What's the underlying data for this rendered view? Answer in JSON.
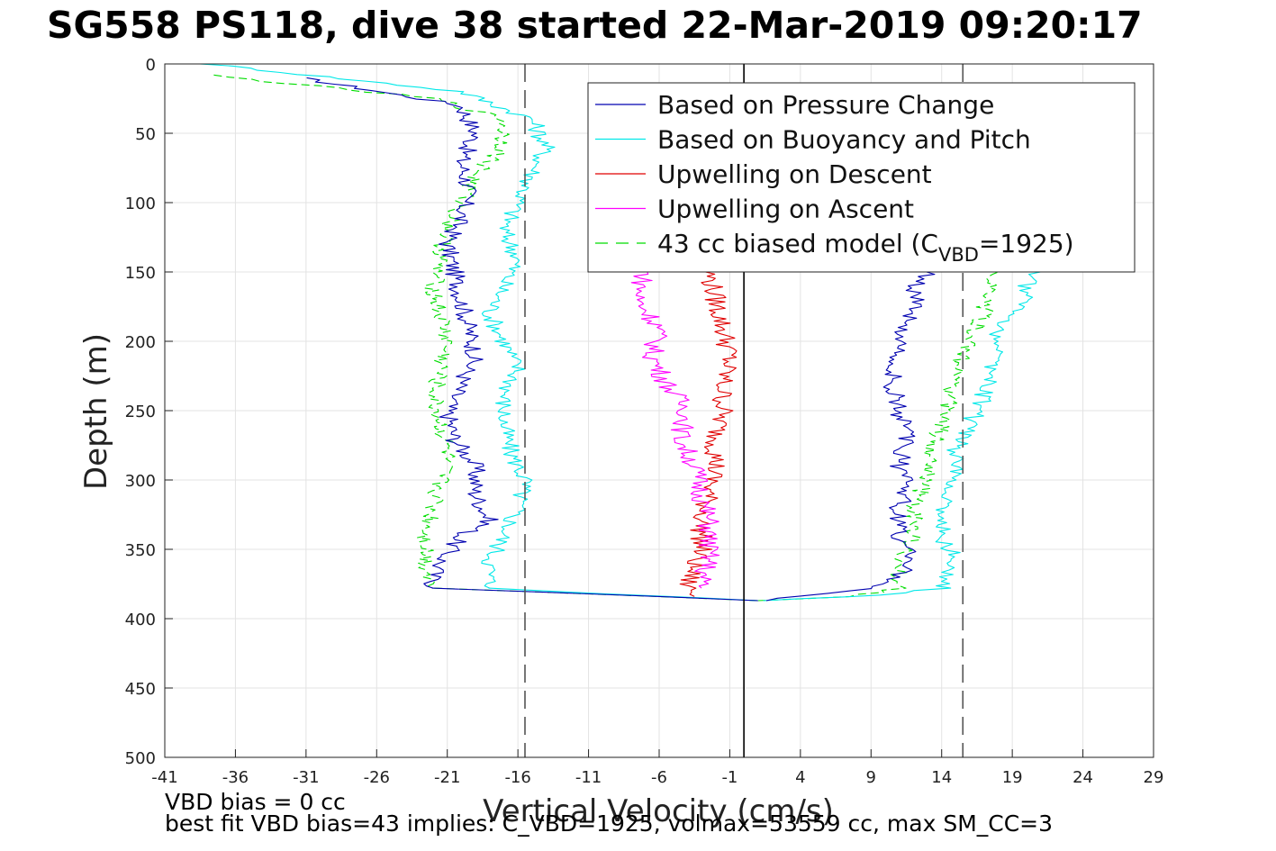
{
  "chart_data": {
    "type": "line",
    "title": "SG558 PS118, dive 38 started 22-Mar-2019 09:20:17",
    "xlabel": "Vertical Velocity (cm/s)",
    "ylabel": "Depth (m)",
    "xlim": [
      -41,
      29
    ],
    "ylim": [
      500,
      0
    ],
    "y_reversed": true,
    "xticks": [
      -41,
      -36,
      -31,
      -26,
      -21,
      -16,
      -11,
      -6,
      -1,
      4,
      9,
      14,
      19,
      24,
      29
    ],
    "yticks": [
      0,
      50,
      100,
      150,
      200,
      250,
      300,
      350,
      400,
      450,
      500
    ],
    "grid": true,
    "legend_position": "top-right",
    "reference_lines": [
      {
        "x": -15.5,
        "style": "dashed",
        "color": "#555555"
      },
      {
        "x": 0,
        "style": "solid",
        "color": "#000000"
      },
      {
        "x": 15.5,
        "style": "dashed",
        "color": "#555555"
      }
    ],
    "legend": [
      {
        "label": "Based on Pressure Change",
        "color": "#0000b0",
        "style": "solid"
      },
      {
        "label": "Based on Buoyancy and Pitch",
        "color": "#00e8e8",
        "style": "solid"
      },
      {
        "label": "Upwelling on Descent",
        "color": "#e00000",
        "style": "solid"
      },
      {
        "label": "Upwelling on Ascent",
        "color": "#ff00ff",
        "style": "solid"
      },
      {
        "label_main": "43 cc biased model (C",
        "label_sub": "VBD",
        "label_tail": "=1925)",
        "color": "#00dd00",
        "style": "dashed"
      }
    ],
    "series": [
      {
        "name": "Based on Pressure Change",
        "color": "#0000b0",
        "descent": {
          "x": [
            -31.5,
            -20,
            -19,
            -20,
            -19.5,
            -20,
            -21,
            -20.5,
            -20,
            -19.5,
            -19,
            -20,
            -21,
            -20.5,
            -19,
            -19,
            -18,
            -20,
            -21.5,
            -22,
            -22
          ],
          "y": [
            10,
            30,
            50,
            70,
            90,
            110,
            130,
            150,
            170,
            190,
            210,
            230,
            250,
            270,
            290,
            310,
            330,
            340,
            360,
            370,
            378
          ]
        },
        "ascent": {
          "x": [
            1,
            8,
            11,
            12,
            11,
            11,
            12,
            11,
            11.5,
            11,
            10.5,
            11,
            11,
            12,
            12.5,
            12,
            13,
            12,
            13
          ],
          "y": [
            387,
            380,
            370,
            355,
            340,
            320,
            300,
            290,
            270,
            250,
            230,
            210,
            195,
            180,
            170,
            160,
            150,
            120,
            20
          ]
        },
        "bottom": {
          "x": [
            -22,
            -14,
            -6,
            1
          ],
          "y": [
            378,
            381,
            384,
            387
          ]
        }
      },
      {
        "name": "Based on Buoyancy and Pitch",
        "color": "#00e8e8",
        "descent": {
          "x": [
            -38,
            -20,
            -15,
            -14,
            -15,
            -16,
            -17,
            -16,
            -17,
            -18,
            -17,
            -16,
            -17,
            -17,
            -16.5,
            -15.5,
            -16,
            -17,
            -18,
            -18
          ],
          "y": [
            0,
            20,
            40,
            60,
            80,
            100,
            120,
            140,
            160,
            180,
            200,
            220,
            240,
            260,
            280,
            300,
            320,
            340,
            360,
            378
          ]
        },
        "ascent": {
          "x": [
            1,
            10,
            14,
            15,
            14,
            14,
            15,
            15,
            16,
            17,
            17.5,
            18,
            18,
            19,
            20,
            20,
            21
          ],
          "y": [
            387,
            383,
            378,
            360,
            340,
            320,
            300,
            280,
            260,
            240,
            220,
            200,
            190,
            180,
            170,
            160,
            150
          ]
        },
        "bottom": {
          "x": [
            -18,
            -10,
            -3,
            1
          ],
          "y": [
            378,
            382,
            385,
            387
          ]
        }
      },
      {
        "name": "Upwelling on Descent",
        "color": "#e00000",
        "x": [
          -2.5,
          -2,
          -1.5,
          -1,
          -1.5,
          -1.5,
          -2,
          -2,
          -2.5,
          -3,
          -3,
          -3.5,
          -4,
          -3.5
        ],
        "y": [
          150,
          170,
          190,
          210,
          230,
          250,
          270,
          290,
          310,
          330,
          350,
          360,
          375,
          384
        ]
      },
      {
        "name": "Upwelling on Ascent",
        "color": "#ff00ff",
        "x": [
          -7,
          -7.5,
          -6,
          -6.5,
          -5.5,
          -4,
          -4.5,
          -3.5,
          -3,
          -2.5,
          -2.5,
          -2.5,
          -3,
          -3
        ],
        "y": [
          150,
          170,
          190,
          210,
          230,
          250,
          270,
          290,
          310,
          330,
          350,
          360,
          370,
          378
        ]
      },
      {
        "name": "43 cc biased model (CVBD=1925)",
        "color": "#00dd00",
        "dashed": true,
        "descent": {
          "x": [
            -38,
            -22,
            -17,
            -17,
            -19,
            -20,
            -21,
            -21.5,
            -22,
            -21.5,
            -21,
            -21.5,
            -22,
            -21.5,
            -21,
            -21.5,
            -22,
            -22.5,
            -22.5,
            -22
          ],
          "y": [
            8,
            25,
            40,
            60,
            80,
            100,
            120,
            140,
            160,
            180,
            200,
            220,
            240,
            260,
            280,
            300,
            320,
            340,
            360,
            378
          ]
        },
        "ascent": {
          "x": [
            1,
            8,
            11,
            11,
            12,
            12,
            13,
            13,
            14,
            14.5,
            15,
            16,
            17,
            18
          ],
          "y": [
            387,
            384,
            378,
            360,
            340,
            320,
            300,
            280,
            260,
            240,
            220,
            200,
            180,
            150
          ]
        },
        "bottom": {
          "x": [
            -22,
            -14,
            -6,
            1
          ],
          "y": [
            378,
            381,
            384,
            387
          ]
        }
      }
    ]
  },
  "footer": {
    "line1": "VBD bias = 0 cc",
    "line2": "best fit VBD bias=43 implies: C_VBD=1925, volmax=53559 cc, max SM_CC=3"
  }
}
